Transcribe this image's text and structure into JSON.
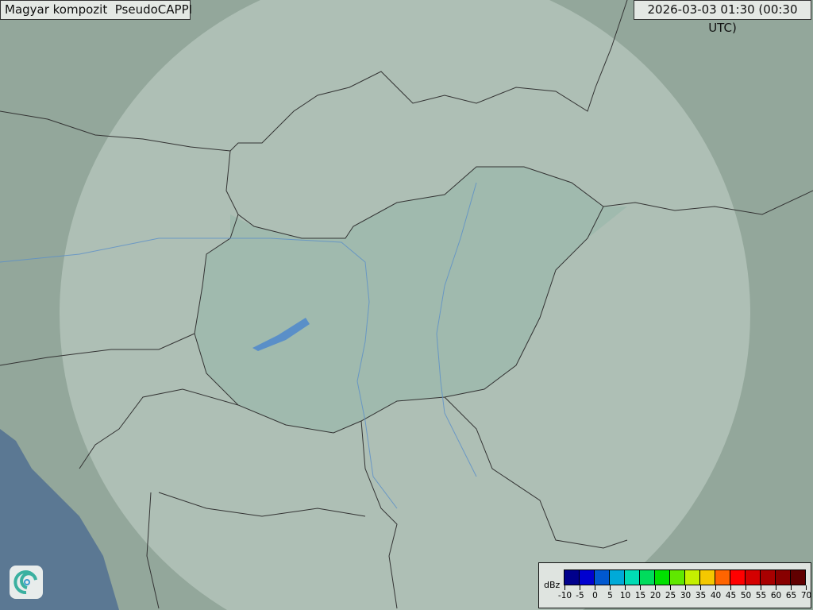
{
  "title": "Magyar kompozit  PseudoCAPPI",
  "timestamp": "2026-03-03 01:30 (00:30 UTC)",
  "logo": "swirl-logo-icon",
  "map_colors": {
    "land": "#93a79b",
    "radar_coverage": "#b7c8bf",
    "hungary": "#9cb9ad",
    "sea": "#5b7893",
    "borders": "#333333",
    "rivers": "#5a8fc8"
  },
  "legend": {
    "unit": "dBz",
    "labels": [
      "-10",
      "-5",
      "0",
      "5",
      "10",
      "15",
      "20",
      "25",
      "30",
      "35",
      "40",
      "45",
      "50",
      "55",
      "60",
      "65",
      "70"
    ],
    "colors": [
      "#00008c",
      "#0000d0",
      "#0058d0",
      "#00aad8",
      "#00dcb4",
      "#00dc5c",
      "#00e000",
      "#60e800",
      "#c4f000",
      "#f4c800",
      "#ff6400",
      "#ff0000",
      "#d40000",
      "#a80000",
      "#880000",
      "#600000"
    ]
  }
}
